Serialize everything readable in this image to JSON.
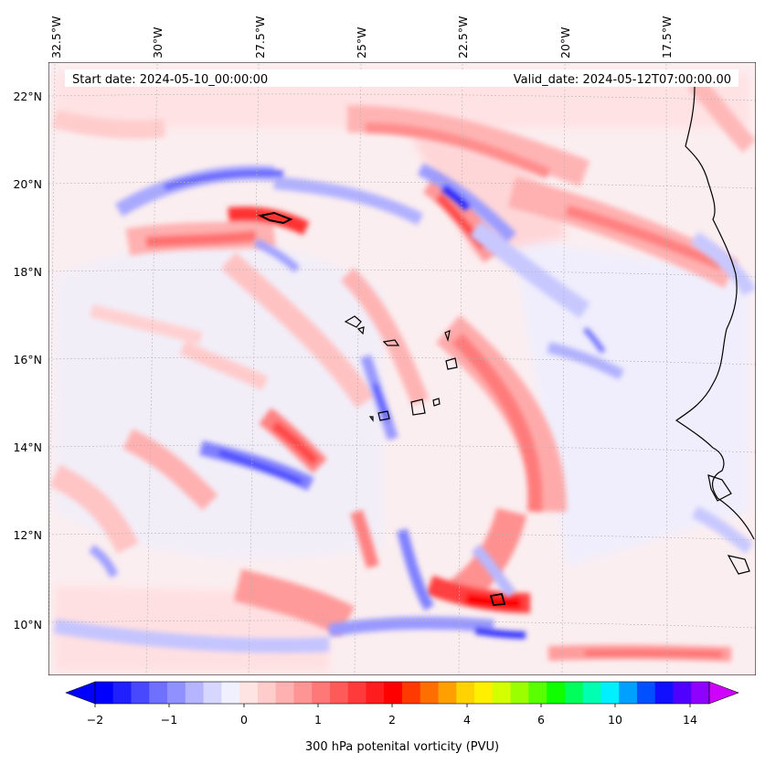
{
  "map": {
    "header": {
      "start_date": "Start date: 2024-05-10_00:00:00",
      "valid_date": "Valid_date: 2024-05-12T07:00:00.00"
    },
    "lon_labels": [
      "32.5°W",
      "30°W",
      "27.5°W",
      "25°W",
      "22.5°W",
      "20°W",
      "17.5°W"
    ],
    "lat_labels": [
      "22°N",
      "20°N",
      "18°N",
      "16°N",
      "14°N",
      "12°N",
      "10°N"
    ],
    "colorbar": {
      "label": "300 hPa potenital vorticity (PVU)",
      "tick_labels": [
        "−2",
        "−1",
        "0",
        "1",
        "2",
        "4",
        "6",
        "10",
        "14"
      ],
      "colors": [
        "#0000ff",
        "#2020ff",
        "#4848ff",
        "#7070ff",
        "#9090ff",
        "#b4b4ff",
        "#d6d6ff",
        "#f0f0ff",
        "#ffe4e4",
        "#ffcccc",
        "#ffb0b0",
        "#ff9494",
        "#ff7878",
        "#ff5a5a",
        "#ff3a3a",
        "#ff1c1c",
        "#ff0000",
        "#ff3a00",
        "#ff6e00",
        "#ffa000",
        "#ffd200",
        "#fff000",
        "#d4ff00",
        "#9cff00",
        "#5aff00",
        "#10ff00",
        "#00ff5a",
        "#00ffb0",
        "#00f0ff",
        "#00a0ff",
        "#0050ff",
        "#1010ff",
        "#5000ff",
        "#9000ff"
      ]
    }
  }
}
